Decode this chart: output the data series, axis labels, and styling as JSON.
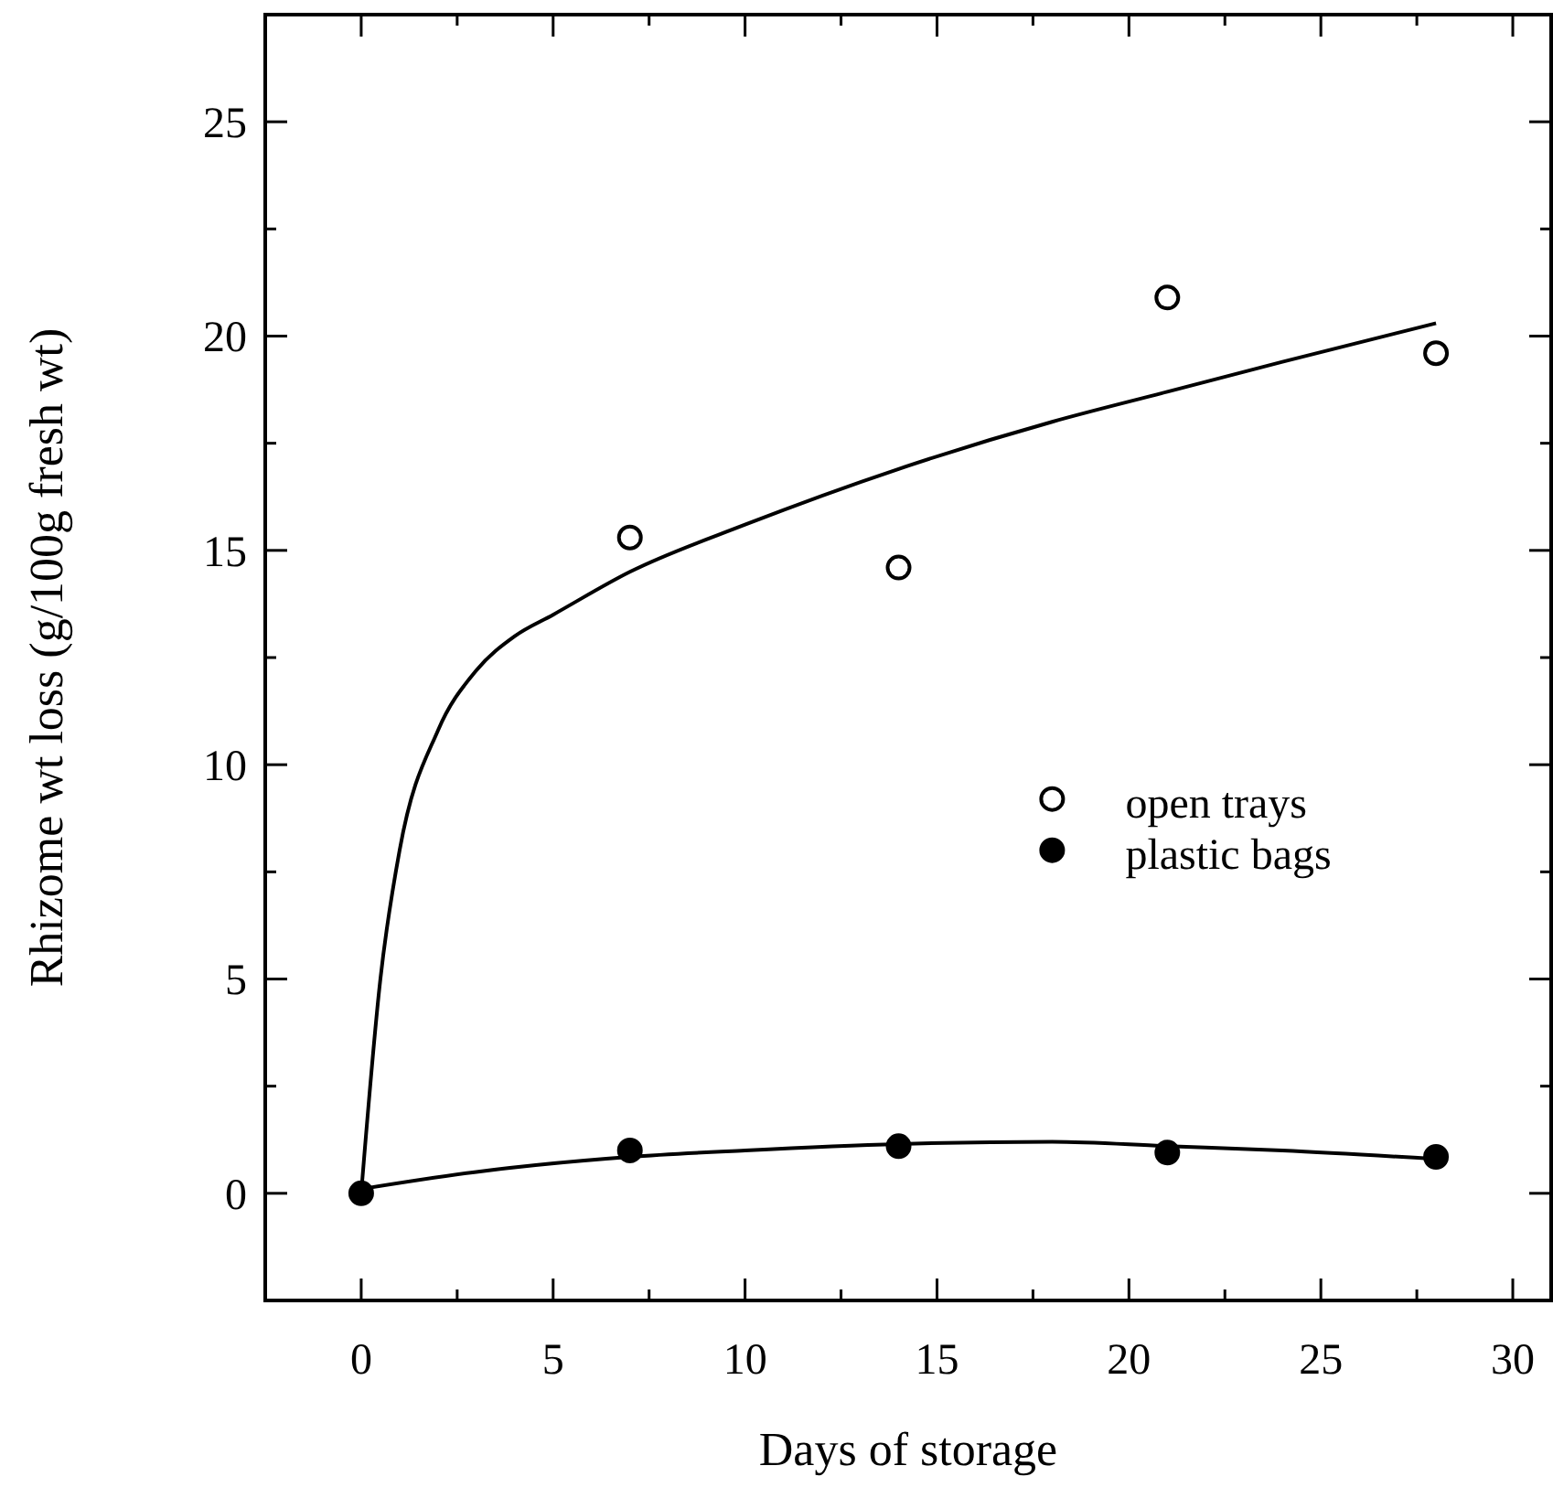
{
  "chart_data": {
    "type": "scatter",
    "xlabel": "Days of storage",
    "ylabel": "Rhizome wt loss (g/100g fresh wt)",
    "xlim": [
      -2.5,
      31
    ],
    "ylim": [
      -2.5,
      27.5
    ],
    "xticks": [
      0,
      {
        "value": 2.5,
        "label": null
      },
      5,
      {
        "value": 7.5,
        "label": null
      },
      10,
      {
        "value": 12.5,
        "label": null
      },
      15,
      {
        "value": 17.5,
        "label": null
      },
      20,
      {
        "value": 22.5,
        "label": null
      },
      25,
      {
        "value": 27.5,
        "label": null
      },
      30
    ],
    "yticks": [
      0,
      {
        "value": 2.5,
        "label": null
      },
      5,
      {
        "value": 7.5,
        "label": null
      },
      10,
      {
        "value": 12.5,
        "label": null
      },
      15,
      {
        "value": 17.5,
        "label": null
      },
      20,
      {
        "value": 22.5,
        "label": null
      },
      25
    ],
    "legend": "right",
    "grid": false,
    "series": [
      {
        "name": "open trays",
        "marker": "circle",
        "color": "#ffffff",
        "x": [
          7,
          14,
          21,
          28
        ],
        "values": [
          15.3,
          14.6,
          20.9,
          19.6
        ]
      },
      {
        "name": "plastic bags",
        "marker": "circle",
        "color": "#000000",
        "x": [
          0,
          7,
          14,
          21,
          28
        ],
        "values": [
          0,
          1.0,
          1.1,
          0.95,
          0.85
        ]
      },
      {
        "type": "line",
        "marker": "none",
        "line_style": "solid",
        "color": "#000000",
        "x": [
          0,
          0.5,
          1,
          2,
          3,
          4,
          5,
          7,
          10,
          14,
          18,
          21,
          24,
          28
        ],
        "values": [
          0,
          5,
          8,
          10.8,
          12.2,
          13,
          13.5,
          14.5,
          15.6,
          16.9,
          18,
          18.7,
          19.4,
          20.3
        ]
      },
      {
        "type": "line",
        "marker": "none",
        "line_style": "solid",
        "color": "#000000",
        "x": [
          0,
          3,
          7,
          10,
          14,
          18,
          21,
          24,
          28
        ],
        "values": [
          0.1,
          0.5,
          0.85,
          1.0,
          1.15,
          1.2,
          1.1,
          1.0,
          0.8
        ]
      }
    ]
  }
}
